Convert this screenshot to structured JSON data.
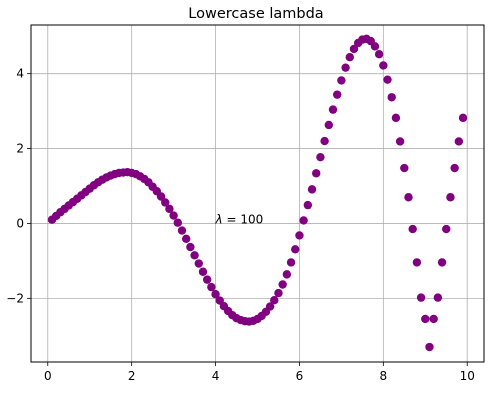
{
  "chart_data": {
    "type": "scatter",
    "title": "Lowercase lambda",
    "xlabel": "",
    "ylabel": "",
    "xlim": [
      -0.4,
      10.4
    ],
    "ylim": [
      -3.7,
      5.3
    ],
    "xticks": [
      0,
      2,
      4,
      6,
      8,
      10
    ],
    "yticks": [
      -2,
      0,
      2,
      4
    ],
    "xtick_labels": [
      "0",
      "2",
      "4",
      "6",
      "8",
      "10"
    ],
    "ytick_labels": [
      "−2",
      "0",
      "2",
      "4"
    ],
    "grid": true,
    "marker_color": "#800080",
    "annotation": {
      "prefix": "λ",
      "text": " = 100",
      "x": 4.0,
      "y": 0.0
    },
    "series": [
      {
        "x": [
          0.1,
          0.2,
          0.3,
          0.4,
          0.5,
          0.6,
          0.7,
          0.8,
          0.9,
          1.0,
          1.1,
          1.2,
          1.3,
          1.4,
          1.5,
          1.6,
          1.7,
          1.8,
          1.9,
          2.0,
          2.1,
          2.2,
          2.3,
          2.4,
          2.5,
          2.6,
          2.7,
          2.8,
          2.9,
          3.0,
          3.1,
          3.2,
          3.3,
          3.4,
          3.5,
          3.6,
          3.7,
          3.8,
          3.9,
          4.0,
          4.1,
          4.2,
          4.3,
          4.4,
          4.5,
          4.6,
          4.7,
          4.8,
          4.9,
          5.0,
          5.1,
          5.2,
          5.3,
          5.4,
          5.5,
          5.6,
          5.7,
          5.8,
          5.9,
          6.0,
          6.1,
          6.2,
          6.3,
          6.4,
          6.5,
          6.6,
          6.7,
          6.8,
          6.9,
          7.0,
          7.1,
          7.2,
          7.3,
          7.4,
          7.5,
          7.6,
          7.7,
          7.8,
          7.9,
          8.0,
          8.1,
          8.2,
          8.3,
          8.4,
          8.5,
          8.6,
          8.7,
          8.8,
          8.9,
          9.0,
          9.1,
          9.2,
          9.3,
          9.4,
          9.5,
          9.6,
          9.7,
          9.8,
          9.9
        ],
        "y": [
          0.1,
          0.2,
          0.3,
          0.39,
          0.48,
          0.57,
          0.66,
          0.75,
          0.84,
          0.93,
          1.02,
          1.1,
          1.17,
          1.23,
          1.28,
          1.32,
          1.35,
          1.36,
          1.37,
          1.35,
          1.32,
          1.26,
          1.19,
          1.1,
          0.98,
          0.86,
          0.72,
          0.56,
          0.39,
          0.21,
          0.02,
          -0.19,
          -0.41,
          -0.63,
          -0.85,
          -1.07,
          -1.29,
          -1.5,
          -1.7,
          -1.89,
          -2.06,
          -2.21,
          -2.34,
          -2.45,
          -2.53,
          -2.58,
          -2.61,
          -2.62,
          -2.6,
          -2.55,
          -2.47,
          -2.36,
          -2.22,
          -2.05,
          -1.86,
          -1.63,
          -1.36,
          -1.04,
          -0.69,
          -0.32,
          0.08,
          0.49,
          0.91,
          1.34,
          1.77,
          2.2,
          2.63,
          3.04,
          3.44,
          3.82,
          4.16,
          4.44,
          4.66,
          4.82,
          4.91,
          4.93,
          4.87,
          4.73,
          4.52,
          4.22,
          3.84,
          3.37,
          2.82,
          2.19,
          1.48,
          0.7,
          -0.15,
          -1.04,
          -1.98,
          -2.55,
          -3.3,
          -2.55,
          -1.98,
          -1.04,
          -0.15,
          0.7,
          1.48,
          2.19,
          2.82
        ]
      }
    ]
  }
}
